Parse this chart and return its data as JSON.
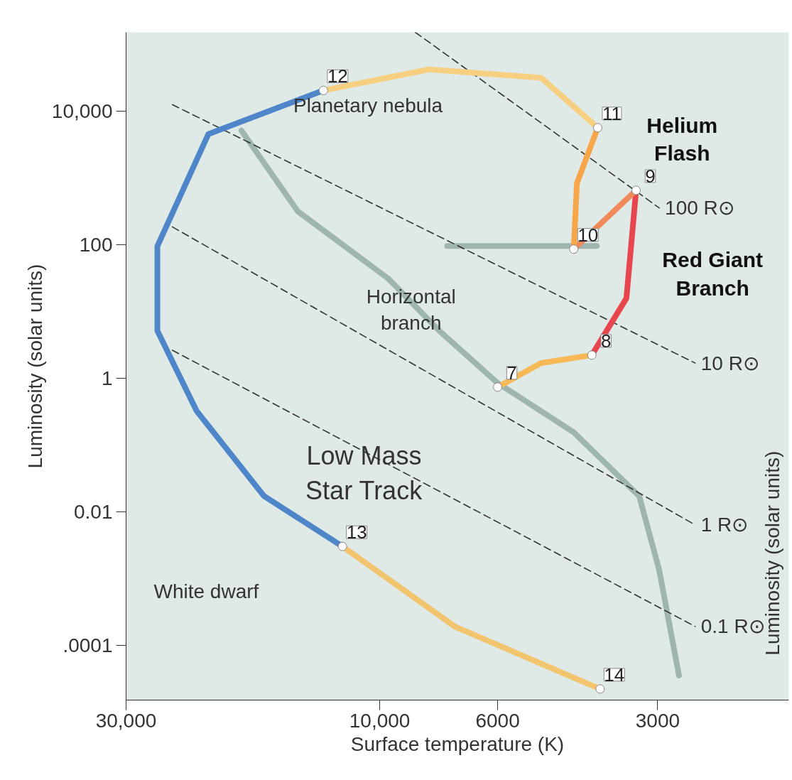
{
  "chart_data": {
    "type": "line",
    "xlabel": "Surface temperature (K)",
    "ylabel": "Luminosity (solar units)",
    "y2label": "Luminosity (solar units)",
    "log": "xy",
    "xlim": [
      30000,
      1700
    ],
    "ylim": [
      1.5e-05,
      150000
    ],
    "xticks": [
      {
        "value": 30000,
        "label": "30,000"
      },
      {
        "value": 10000,
        "label": "10,000"
      },
      6000,
      3000
    ],
    "yticks": [
      {
        "value": 0.0001,
        "label": ".0001"
      },
      0.01,
      1,
      100,
      {
        "value": 10000,
        "label": "10,000"
      }
    ],
    "grid": false,
    "series": [
      {
        "color": "#9fb5b0",
        "x": [
          18200,
          14260,
          9630,
          7730,
          6000,
          4315,
          3250,
          2980,
          2735
        ],
        "values": [
          5070,
          313,
          30.6,
          5.1,
          0.84,
          0.153,
          0.017,
          0.00133,
          3.5e-05
        ]
      },
      {
        "color": "#9fb5b0",
        "x": [
          7470,
          3905
        ],
        "values": [
          95,
          95
        ]
      },
      {
        "name": "100 R⊙",
        "color": "#333333",
        "line_style": "dashed",
        "x": [
          8570,
          2980
        ],
        "values": [
          150000,
          352
        ]
      },
      {
        "name": "10 R⊙",
        "color": "#333333",
        "line_style": "dashed",
        "x": [
          24550,
          2550
        ],
        "values": [
          12400,
          1.67
        ]
      },
      {
        "name": "1 R⊙",
        "color": "#333333",
        "line_style": "dashed",
        "x": [
          24550,
          2550
        ],
        "values": [
          183,
          0.0063
        ]
      },
      {
        "name": "0.1 R⊙",
        "color": "#333333",
        "line_style": "dashed",
        "x": [
          24550,
          2550
        ],
        "values": [
          2.6,
          0.00019
        ]
      },
      {
        "color": "#f7b955",
        "x": [
          6000,
          4970,
          3990
        ],
        "values": [
          0.73,
          1.67,
          2.2
        ]
      },
      {
        "color": "#e8464e",
        "x": [
          3990,
          3435,
          3294
        ],
        "values": [
          2.2,
          15.6,
          646
        ]
      },
      {
        "color": "#f08a5a",
        "x": [
          3294,
          4315
        ],
        "values": [
          646,
          85
        ]
      },
      {
        "color": "#f7a64a",
        "x": [
          4315,
          4256,
          3890
        ],
        "values": [
          85,
          824,
          5590
        ]
      },
      {
        "color": "#f7cf80",
        "x": [
          3890,
          4970,
          8070,
          12760
        ],
        "values": [
          5590,
          31300,
          41700,
          20200
        ]
      },
      {
        "color": "#4f86c9",
        "x": [
          12760,
          21000,
          26200,
          26200,
          22100,
          16500,
          11750
        ],
        "values": [
          20200,
          4500,
          94,
          5.1,
          0.32,
          0.017,
          0.003
        ]
      },
      {
        "color": "#f2c46e",
        "x": [
          11750,
          7230,
          3850
        ],
        "values": [
          0.003,
          0.00019,
          2.2e-05
        ]
      }
    ],
    "annotations": [
      {
        "text": "12",
        "x": 12760,
        "y": 20200
      },
      {
        "text": "11",
        "x": 3890,
        "y": 5590
      },
      {
        "text": "9",
        "x": 3294,
        "y": 646
      },
      {
        "text": "10",
        "x": 4315,
        "y": 85
      },
      {
        "text": "8",
        "x": 3990,
        "y": 2.2
      },
      {
        "text": "7",
        "x": 6000,
        "y": 0.73
      },
      {
        "text": "13",
        "x": 11750,
        "y": 0.003
      },
      {
        "text": "14",
        "x": 3850,
        "y": 2.2e-05
      },
      "Planetary nebula",
      "Horizontal\nbranch",
      "White dwarf",
      "Helium\nFlash",
      "Red Giant\nBranch",
      "Low Mass\nStar Track"
    ]
  }
}
